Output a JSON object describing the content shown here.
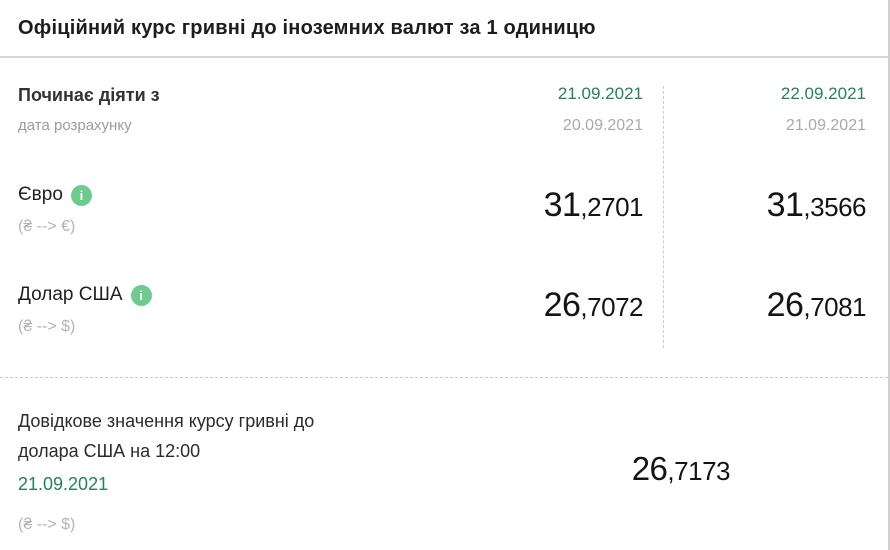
{
  "title": "Офіційний курс гривні до іноземних валют за 1 одиницю",
  "colors": {
    "accent_green": "#24815a",
    "info_icon_green": "#6fcb8d"
  },
  "header": {
    "label": "Починає діяти з",
    "sublabel": "дата розрахунку",
    "columns": [
      {
        "effective_date": "21.09.2021",
        "calculation_date": "20.09.2021"
      },
      {
        "effective_date": "22.09.2021",
        "calculation_date": "21.09.2021"
      }
    ]
  },
  "rows": [
    {
      "currency": "Євро",
      "pair": "(₴ --> €)",
      "info": "i",
      "values": [
        "31,2701",
        "31,3566"
      ]
    },
    {
      "currency": "Долар США",
      "pair": "(₴ --> $)",
      "info": "i",
      "values": [
        "26,7072",
        "26,7081"
      ]
    }
  ],
  "reference": {
    "label_line1": "Довідкове значення курсу гривні до",
    "label_line2": "долара США на 12:00",
    "date": "21.09.2021",
    "pair": "(₴ --> $)",
    "value": "26,7173"
  }
}
